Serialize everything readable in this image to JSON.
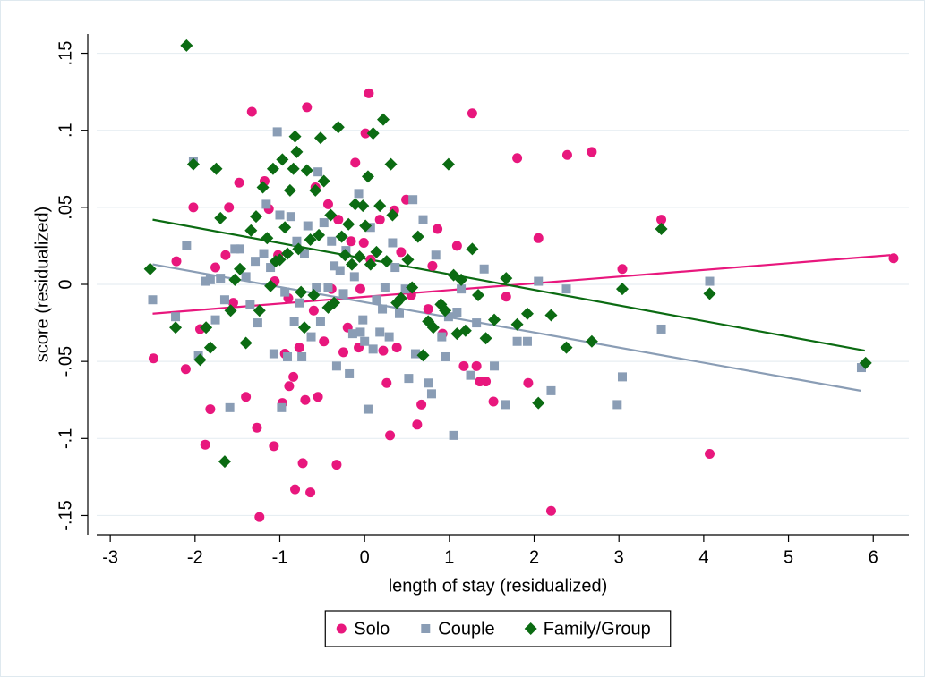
{
  "chart_data": {
    "type": "scatter",
    "xlabel": "length of stay (residualized)",
    "ylabel": "score (residualized)",
    "xlim": [
      -3.16,
      6.42
    ],
    "ylim": [
      -0.1625,
      0.1625
    ],
    "xticks": [
      -3,
      -2,
      -1,
      0,
      1,
      2,
      3,
      4,
      5,
      6
    ],
    "yticks": [
      {
        "value": -0.15,
        "label": "-.15"
      },
      {
        "value": -0.1,
        "label": "-.1"
      },
      {
        "value": -0.05,
        "label": "-.05"
      },
      {
        "value": 0,
        "label": "0"
      },
      {
        "value": 0.05,
        "label": ".05"
      },
      {
        "value": 0.1,
        "label": ".1"
      },
      {
        "value": 0.15,
        "label": ".15"
      }
    ],
    "grid": true,
    "legend": "bottom",
    "series": [
      {
        "name": "Solo",
        "color": "#e8177d",
        "marker": "circle",
        "x": [
          -2.49,
          -2.22,
          -2.11,
          -2.02,
          -1.94,
          -1.88,
          -1.82,
          -1.76,
          -1.64,
          -1.6,
          -1.55,
          -1.48,
          -1.4,
          -1.33,
          -1.27,
          -1.24,
          -1.18,
          -1.13,
          -1.07,
          -1.06,
          -1.02,
          -0.97,
          -0.94,
          -0.9,
          -0.89,
          -0.84,
          -0.82,
          -0.77,
          -0.73,
          -0.7,
          -0.68,
          -0.64,
          -0.6,
          -0.58,
          -0.55,
          -0.48,
          -0.43,
          -0.39,
          -0.33,
          -0.31,
          -0.25,
          -0.2,
          -0.16,
          -0.11,
          -0.07,
          -0.05,
          -0.01,
          0.01,
          0.05,
          0.07,
          0.18,
          0.22,
          0.26,
          0.3,
          0.35,
          0.38,
          0.43,
          0.49,
          0.55,
          0.62,
          0.67,
          0.75,
          0.8,
          0.86,
          0.92,
          1.09,
          1.17,
          1.27,
          1.32,
          1.36,
          1.43,
          1.52,
          1.67,
          1.8,
          1.93,
          2.05,
          2.2,
          2.39,
          2.68,
          3.04,
          3.5,
          4.07,
          6.24
        ],
        "values": [
          -0.048,
          0.015,
          -0.055,
          0.05,
          -0.029,
          -0.104,
          -0.081,
          0.011,
          0.019,
          0.05,
          -0.012,
          0.066,
          -0.073,
          0.112,
          -0.093,
          -0.151,
          0.067,
          0.049,
          -0.105,
          0.002,
          0.019,
          -0.077,
          -0.045,
          -0.009,
          -0.066,
          -0.06,
          -0.133,
          -0.041,
          -0.116,
          -0.075,
          0.115,
          -0.135,
          -0.017,
          0.063,
          -0.073,
          -0.037,
          0.052,
          -0.003,
          -0.117,
          0.042,
          -0.044,
          -0.028,
          0.028,
          0.079,
          -0.041,
          -0.003,
          0.027,
          0.098,
          0.124,
          0.016,
          0.042,
          -0.043,
          -0.064,
          -0.098,
          0.048,
          -0.041,
          0.021,
          0.055,
          -0.007,
          -0.091,
          -0.078,
          -0.016,
          0.012,
          0.036,
          -0.032,
          0.025,
          -0.053,
          0.111,
          -0.053,
          -0.063,
          -0.063,
          -0.076,
          -0.008,
          0.082,
          -0.064,
          0.03,
          -0.147,
          0.084,
          0.086,
          0.01,
          0.042,
          -0.11,
          0.017
        ],
        "fit": {
          "x": [
            -2.5,
            6.2
          ],
          "values": [
            -0.019,
            0.019
          ]
        }
      },
      {
        "name": "Couple",
        "color": "#8a9db5",
        "marker": "square",
        "x": [
          -2.5,
          -2.23,
          -2.1,
          -2.02,
          -1.96,
          -1.88,
          -1.82,
          -1.76,
          -1.7,
          -1.65,
          -1.59,
          -1.53,
          -1.47,
          -1.4,
          -1.35,
          -1.29,
          -1.26,
          -1.19,
          -1.16,
          -1.11,
          -1.07,
          -1.03,
          -1.0,
          -0.98,
          -0.94,
          -0.91,
          -0.87,
          -0.83,
          -0.8,
          -0.77,
          -0.74,
          -0.71,
          -0.67,
          -0.63,
          -0.57,
          -0.55,
          -0.52,
          -0.48,
          -0.43,
          -0.39,
          -0.36,
          -0.33,
          -0.29,
          -0.25,
          -0.22,
          -0.18,
          -0.14,
          -0.12,
          -0.07,
          -0.05,
          -0.02,
          0.0,
          0.04,
          0.07,
          0.1,
          0.14,
          0.18,
          0.21,
          0.24,
          0.29,
          0.33,
          0.36,
          0.41,
          0.48,
          0.52,
          0.57,
          0.6,
          0.69,
          0.75,
          0.79,
          0.84,
          0.91,
          0.95,
          0.99,
          1.05,
          1.09,
          1.14,
          1.25,
          1.32,
          1.41,
          1.53,
          1.66,
          1.8,
          1.92,
          2.05,
          2.2,
          2.38,
          2.98,
          3.04,
          3.5,
          4.07,
          5.86
        ],
        "values": [
          -0.01,
          -0.021,
          0.025,
          0.08,
          -0.046,
          0.002,
          0.003,
          -0.023,
          0.004,
          -0.01,
          -0.08,
          0.023,
          0.023,
          0.005,
          -0.013,
          0.015,
          -0.025,
          0.02,
          0.052,
          0.011,
          -0.045,
          0.099,
          0.045,
          -0.08,
          -0.005,
          -0.047,
          0.044,
          -0.024,
          0.028,
          -0.012,
          -0.047,
          0.02,
          0.038,
          -0.034,
          -0.002,
          0.073,
          -0.024,
          0.04,
          -0.002,
          0.028,
          0.012,
          -0.053,
          0.009,
          -0.006,
          0.022,
          -0.058,
          -0.032,
          0.005,
          0.059,
          -0.031,
          -0.023,
          -0.037,
          -0.081,
          0.037,
          -0.042,
          -0.01,
          -0.031,
          -0.016,
          -0.002,
          -0.034,
          0.027,
          0.011,
          -0.019,
          -0.003,
          -0.061,
          0.055,
          -0.045,
          0.042,
          -0.064,
          -0.071,
          0.019,
          -0.034,
          -0.047,
          -0.021,
          -0.098,
          -0.018,
          -0.003,
          -0.059,
          -0.025,
          0.01,
          -0.053,
          -0.078,
          -0.037,
          -0.037,
          0.002,
          -0.069,
          -0.003,
          -0.078,
          -0.06,
          -0.029,
          0.002,
          -0.054
        ],
        "fit": {
          "x": [
            -2.5,
            5.85
          ],
          "values": [
            0.013,
            -0.069
          ]
        }
      },
      {
        "name": "Family/Group",
        "color": "#0b6b12",
        "marker": "diamond",
        "x": [
          -2.53,
          -2.23,
          -2.1,
          -2.02,
          -1.94,
          -1.87,
          -1.82,
          -1.75,
          -1.7,
          -1.65,
          -1.58,
          -1.53,
          -1.47,
          -1.4,
          -1.34,
          -1.28,
          -1.24,
          -1.2,
          -1.15,
          -1.11,
          -1.08,
          -1.05,
          -1.0,
          -0.97,
          -0.94,
          -0.91,
          -0.88,
          -0.84,
          -0.82,
          -0.8,
          -0.78,
          -0.75,
          -0.71,
          -0.68,
          -0.64,
          -0.6,
          -0.58,
          -0.54,
          -0.52,
          -0.48,
          -0.43,
          -0.4,
          -0.36,
          -0.31,
          -0.27,
          -0.23,
          -0.19,
          -0.15,
          -0.11,
          -0.06,
          -0.02,
          0.01,
          0.04,
          0.07,
          0.1,
          0.14,
          0.18,
          0.22,
          0.26,
          0.31,
          0.33,
          0.38,
          0.43,
          0.51,
          0.56,
          0.63,
          0.69,
          0.75,
          0.81,
          0.9,
          0.95,
          0.99,
          1.05,
          1.09,
          1.14,
          1.19,
          1.27,
          1.34,
          1.43,
          1.53,
          1.67,
          1.8,
          1.92,
          2.05,
          2.2,
          2.38,
          2.68,
          3.04,
          3.5,
          4.07,
          5.91
        ],
        "values": [
          0.01,
          -0.028,
          0.155,
          0.078,
          -0.049,
          -0.028,
          -0.041,
          0.075,
          0.043,
          -0.115,
          -0.017,
          0.003,
          0.01,
          -0.038,
          0.035,
          0.044,
          -0.017,
          0.063,
          0.03,
          -0.001,
          0.075,
          0.015,
          0.016,
          0.081,
          0.037,
          0.02,
          0.061,
          0.075,
          0.096,
          0.086,
          0.023,
          -0.005,
          -0.028,
          0.074,
          0.029,
          -0.007,
          0.061,
          0.032,
          0.095,
          0.067,
          -0.015,
          0.045,
          -0.012,
          0.102,
          0.031,
          0.019,
          0.039,
          0.013,
          0.052,
          0.018,
          0.051,
          0.038,
          0.07,
          0.013,
          0.098,
          0.021,
          0.051,
          0.107,
          0.015,
          0.078,
          0.045,
          -0.012,
          -0.009,
          0.016,
          -0.002,
          0.031,
          -0.046,
          -0.024,
          -0.028,
          -0.013,
          -0.017,
          0.078,
          0.006,
          -0.032,
          0.003,
          -0.03,
          0.023,
          -0.007,
          -0.035,
          -0.023,
          0.004,
          -0.026,
          -0.019,
          -0.077,
          -0.02,
          -0.041,
          -0.037,
          -0.003,
          0.036,
          -0.006,
          -0.051
        ],
        "fit": {
          "x": [
            -2.5,
            5.9
          ],
          "values": [
            0.042,
            -0.043
          ]
        }
      }
    ]
  }
}
